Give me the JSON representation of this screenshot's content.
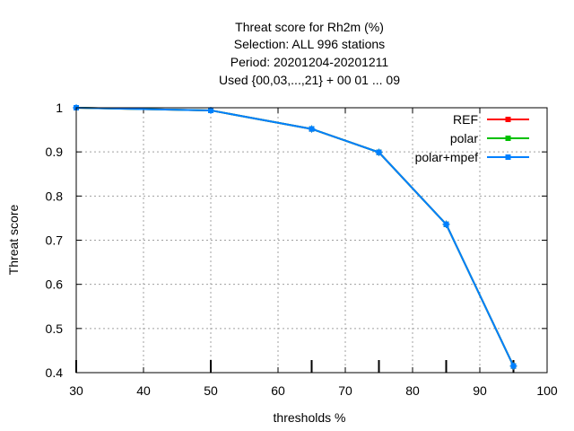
{
  "chart_data": {
    "type": "line",
    "title_lines": [
      "Threat score  for Rh2m (%)",
      "Selection: ALL    996 stations",
      "Period: 20201204-20201211",
      "Used {00,03,...,21} + 00 01 ... 09"
    ],
    "xlabel": "thresholds %",
    "ylabel": "Threat score",
    "xlim": [
      30,
      100
    ],
    "ylim": [
      0.4,
      1.0
    ],
    "xticks": [
      30,
      40,
      50,
      60,
      70,
      80,
      90,
      100
    ],
    "yticks": [
      0.4,
      0.5,
      0.6,
      0.7,
      0.8,
      0.9,
      1.0
    ],
    "ytick_labels": [
      "0.4",
      "0.5",
      "0.6",
      "0.7",
      "0.8",
      "0.9",
      "1"
    ],
    "grid": true,
    "legend_position": "top-right",
    "x": [
      30,
      50,
      65,
      75,
      85,
      95
    ],
    "series": [
      {
        "name": "REF",
        "color": "#ff0000",
        "values": [
          1.0,
          0.994,
          0.952,
          0.899,
          0.736,
          0.415
        ]
      },
      {
        "name": "polar",
        "color": "#00c000",
        "values": [
          1.0,
          0.994,
          0.952,
          0.899,
          0.736,
          0.415
        ]
      },
      {
        "name": "polar+mpef",
        "color": "#0080ff",
        "values": [
          1.0,
          0.994,
          0.952,
          0.899,
          0.736,
          0.415
        ]
      }
    ]
  }
}
